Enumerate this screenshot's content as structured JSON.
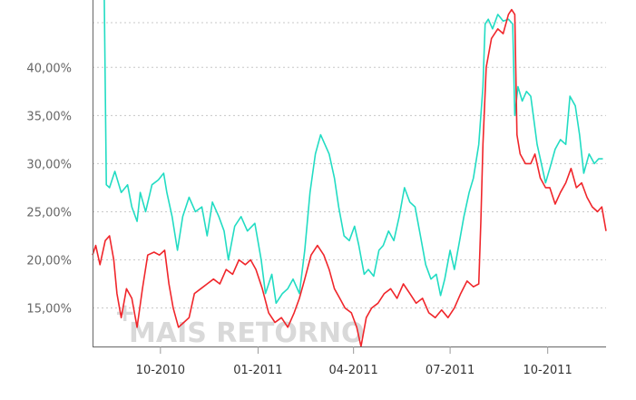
{
  "watermark": "MAIS RETORNO",
  "colors": {
    "series_a": "#22dcc3",
    "series_b": "#f0262b",
    "grid": "#c8c8c8",
    "axis": "#666666"
  },
  "chart_data": {
    "type": "line",
    "title": "",
    "xlabel": "",
    "ylabel": "",
    "grid": "horizontal dotted",
    "legend": "none",
    "ylim": [
      11,
      47
    ],
    "xlim": [
      "2010-07-29",
      "2011-11-25"
    ],
    "y_ticks": [
      15,
      20,
      25,
      30,
      35,
      40
    ],
    "y_tick_labels": [
      "15,00%",
      "20,00%",
      "25,00%",
      "30,00%",
      "35,00%",
      "40,00%"
    ],
    "x_ticks": [
      "2010-10-01",
      "2011-01-01",
      "2011-04-01",
      "2011-07-01",
      "2011-10-01"
    ],
    "x_tick_labels": [
      "10-2010",
      "01-2011",
      "04-2011",
      "07-2011",
      "10-2011"
    ],
    "series": [
      {
        "color": "#22dcc3",
        "points": [
          [
            "2010-08-09",
            47.5
          ],
          [
            "2010-08-11",
            27.8
          ],
          [
            "2010-08-14",
            27.5
          ],
          [
            "2010-08-19",
            29.2
          ],
          [
            "2010-08-25",
            27.0
          ],
          [
            "2010-08-31",
            27.8
          ],
          [
            "2010-09-04",
            25.5
          ],
          [
            "2010-09-09",
            24.0
          ],
          [
            "2010-09-12",
            27.0
          ],
          [
            "2010-09-17",
            25.0
          ],
          [
            "2010-09-23",
            27.8
          ],
          [
            "2010-09-29",
            28.3
          ],
          [
            "2010-10-04",
            29.0
          ],
          [
            "2010-10-07",
            27.0
          ],
          [
            "2010-10-12",
            24.5
          ],
          [
            "2010-10-17",
            21.0
          ],
          [
            "2010-10-22",
            24.5
          ],
          [
            "2010-10-28",
            26.5
          ],
          [
            "2010-11-03",
            25.0
          ],
          [
            "2010-11-09",
            25.5
          ],
          [
            "2010-11-14",
            22.5
          ],
          [
            "2010-11-19",
            26.0
          ],
          [
            "2010-11-25",
            24.5
          ],
          [
            "2010-11-30",
            23.0
          ],
          [
            "2010-12-04",
            20.0
          ],
          [
            "2010-12-10",
            23.5
          ],
          [
            "2010-12-16",
            24.5
          ],
          [
            "2010-12-22",
            23.0
          ],
          [
            "2010-12-29",
            23.8
          ],
          [
            "2011-01-04",
            20.0
          ],
          [
            "2011-01-08",
            16.5
          ],
          [
            "2011-01-14",
            18.5
          ],
          [
            "2011-01-18",
            15.5
          ],
          [
            "2011-01-24",
            16.5
          ],
          [
            "2011-01-29",
            17.0
          ],
          [
            "2011-02-03",
            18.0
          ],
          [
            "2011-02-09",
            16.5
          ],
          [
            "2011-02-14",
            21.0
          ],
          [
            "2011-02-19",
            27.0
          ],
          [
            "2011-02-24",
            31.0
          ],
          [
            "2011-03-01",
            33.0
          ],
          [
            "2011-03-05",
            32.0
          ],
          [
            "2011-03-09",
            31.0
          ],
          [
            "2011-03-14",
            28.5
          ],
          [
            "2011-03-18",
            25.5
          ],
          [
            "2011-03-23",
            22.5
          ],
          [
            "2011-03-28",
            22.0
          ],
          [
            "2011-04-02",
            23.5
          ],
          [
            "2011-04-06",
            21.5
          ],
          [
            "2011-04-11",
            18.5
          ],
          [
            "2011-04-15",
            19.0
          ],
          [
            "2011-04-20",
            18.3
          ],
          [
            "2011-04-25",
            21.0
          ],
          [
            "2011-04-29",
            21.5
          ],
          [
            "2011-05-04",
            23.0
          ],
          [
            "2011-05-09",
            22.0
          ],
          [
            "2011-05-14",
            24.5
          ],
          [
            "2011-05-19",
            27.5
          ],
          [
            "2011-05-24",
            26.0
          ],
          [
            "2011-05-29",
            25.5
          ],
          [
            "2011-06-03",
            22.5
          ],
          [
            "2011-06-08",
            19.5
          ],
          [
            "2011-06-13",
            18.0
          ],
          [
            "2011-06-18",
            18.5
          ],
          [
            "2011-06-22",
            16.3
          ],
          [
            "2011-06-26",
            18.0
          ],
          [
            "2011-07-01",
            21.0
          ],
          [
            "2011-07-05",
            19.0
          ],
          [
            "2011-07-10",
            22.0
          ],
          [
            "2011-07-14",
            24.5
          ],
          [
            "2011-07-19",
            27.0
          ],
          [
            "2011-07-23",
            28.5
          ],
          [
            "2011-07-28",
            32.0
          ],
          [
            "2011-08-01",
            38.0
          ],
          [
            "2011-08-03",
            44.5
          ],
          [
            "2011-08-06",
            45.0
          ],
          [
            "2011-08-10",
            44.0
          ],
          [
            "2011-08-15",
            45.5
          ],
          [
            "2011-08-20",
            44.8
          ],
          [
            "2011-08-25",
            45.0
          ],
          [
            "2011-08-29",
            44.5
          ],
          [
            "2011-08-31",
            35.0
          ],
          [
            "2011-09-03",
            38.0
          ],
          [
            "2011-09-07",
            36.5
          ],
          [
            "2011-09-11",
            37.5
          ],
          [
            "2011-09-15",
            37.0
          ],
          [
            "2011-09-18",
            34.5
          ],
          [
            "2011-09-21",
            32.0
          ],
          [
            "2011-09-25",
            30.0
          ],
          [
            "2011-09-29",
            28.0
          ],
          [
            "2011-10-03",
            29.5
          ],
          [
            "2011-10-08",
            31.5
          ],
          [
            "2011-10-13",
            32.5
          ],
          [
            "2011-10-18",
            32.0
          ],
          [
            "2011-10-22",
            37.0
          ],
          [
            "2011-10-27",
            36.0
          ],
          [
            "2011-10-31",
            33.0
          ],
          [
            "2011-11-04",
            29.0
          ],
          [
            "2011-11-09",
            31.0
          ],
          [
            "2011-11-14",
            30.0
          ],
          [
            "2011-11-18",
            30.5
          ],
          [
            "2011-11-22",
            30.5
          ]
        ]
      },
      {
        "color": "#f0262b",
        "points": [
          [
            "2010-07-29",
            20.5
          ],
          [
            "2010-08-01",
            21.5
          ],
          [
            "2010-08-05",
            19.5
          ],
          [
            "2010-08-10",
            22.0
          ],
          [
            "2010-08-14",
            22.5
          ],
          [
            "2010-08-18",
            20.0
          ],
          [
            "2010-08-21",
            16.5
          ],
          [
            "2010-08-25",
            14.0
          ],
          [
            "2010-08-30",
            17.0
          ],
          [
            "2010-09-04",
            16.0
          ],
          [
            "2010-09-09",
            13.0
          ],
          [
            "2010-09-14",
            17.0
          ],
          [
            "2010-09-19",
            20.5
          ],
          [
            "2010-09-25",
            20.8
          ],
          [
            "2010-09-30",
            20.5
          ],
          [
            "2010-10-05",
            21.0
          ],
          [
            "2010-10-09",
            17.5
          ],
          [
            "2010-10-13",
            15.0
          ],
          [
            "2010-10-18",
            13.0
          ],
          [
            "2010-10-23",
            13.5
          ],
          [
            "2010-10-28",
            14.0
          ],
          [
            "2010-11-02",
            16.5
          ],
          [
            "2010-11-08",
            17.0
          ],
          [
            "2010-11-14",
            17.5
          ],
          [
            "2010-11-20",
            18.0
          ],
          [
            "2010-11-26",
            17.5
          ],
          [
            "2010-12-02",
            19.0
          ],
          [
            "2010-12-08",
            18.5
          ],
          [
            "2010-12-14",
            20.0
          ],
          [
            "2010-12-20",
            19.5
          ],
          [
            "2010-12-25",
            20.0
          ],
          [
            "2010-12-30",
            19.0
          ],
          [
            "2011-01-05",
            17.0
          ],
          [
            "2011-01-11",
            14.5
          ],
          [
            "2011-01-17",
            13.5
          ],
          [
            "2011-01-23",
            14.0
          ],
          [
            "2011-01-29",
            13.0
          ],
          [
            "2011-02-04",
            14.5
          ],
          [
            "2011-02-09",
            16.0
          ],
          [
            "2011-02-14",
            18.0
          ],
          [
            "2011-02-20",
            20.5
          ],
          [
            "2011-02-26",
            21.5
          ],
          [
            "2011-03-04",
            20.5
          ],
          [
            "2011-03-09",
            19.0
          ],
          [
            "2011-03-14",
            17.0
          ],
          [
            "2011-03-19",
            16.0
          ],
          [
            "2011-03-24",
            15.0
          ],
          [
            "2011-03-30",
            14.5
          ],
          [
            "2011-04-04",
            13.0
          ],
          [
            "2011-04-08",
            11.0
          ],
          [
            "2011-04-13",
            14.0
          ],
          [
            "2011-04-18",
            15.0
          ],
          [
            "2011-04-24",
            15.5
          ],
          [
            "2011-04-30",
            16.5
          ],
          [
            "2011-05-06",
            17.0
          ],
          [
            "2011-05-12",
            16.0
          ],
          [
            "2011-05-18",
            17.5
          ],
          [
            "2011-05-24",
            16.5
          ],
          [
            "2011-05-30",
            15.5
          ],
          [
            "2011-06-05",
            16.0
          ],
          [
            "2011-06-11",
            14.5
          ],
          [
            "2011-06-17",
            14.0
          ],
          [
            "2011-06-23",
            14.8
          ],
          [
            "2011-06-29",
            14.0
          ],
          [
            "2011-07-05",
            15.0
          ],
          [
            "2011-07-11",
            16.5
          ],
          [
            "2011-07-17",
            17.8
          ],
          [
            "2011-07-23",
            17.2
          ],
          [
            "2011-07-28",
            17.5
          ],
          [
            "2011-07-30",
            24.0
          ],
          [
            "2011-08-01",
            32.0
          ],
          [
            "2011-08-04",
            40.0
          ],
          [
            "2011-08-09",
            43.0
          ],
          [
            "2011-08-15",
            44.0
          ],
          [
            "2011-08-20",
            43.5
          ],
          [
            "2011-08-25",
            45.5
          ],
          [
            "2011-08-28",
            46.0
          ],
          [
            "2011-08-31",
            45.5
          ],
          [
            "2011-09-02",
            33.0
          ],
          [
            "2011-09-05",
            31.0
          ],
          [
            "2011-09-10",
            30.0
          ],
          [
            "2011-09-15",
            30.0
          ],
          [
            "2011-09-19",
            31.0
          ],
          [
            "2011-09-24",
            28.5
          ],
          [
            "2011-09-29",
            27.5
          ],
          [
            "2011-10-03",
            27.5
          ],
          [
            "2011-10-08",
            25.8
          ],
          [
            "2011-10-13",
            27.0
          ],
          [
            "2011-10-18",
            28.0
          ],
          [
            "2011-10-23",
            29.5
          ],
          [
            "2011-10-28",
            27.5
          ],
          [
            "2011-11-02",
            28.0
          ],
          [
            "2011-11-07",
            26.5
          ],
          [
            "2011-11-12",
            25.5
          ],
          [
            "2011-11-17",
            25.0
          ],
          [
            "2011-11-21",
            25.5
          ],
          [
            "2011-11-25",
            23.0
          ]
        ]
      }
    ]
  }
}
